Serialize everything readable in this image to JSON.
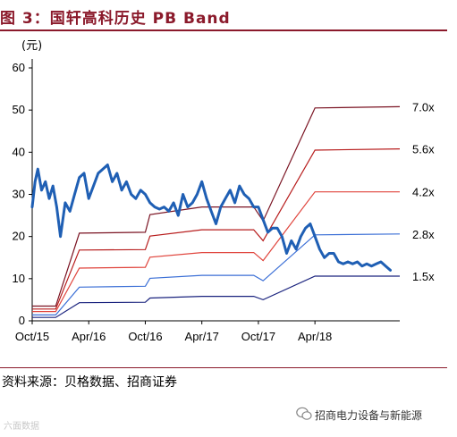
{
  "title": "图 3：国轩高科历史 PB Band",
  "source": "资料来源：贝格数据、招商证券",
  "watermark_left": "六面数据",
  "watermark_right": "招商电力设备与新能源",
  "colors": {
    "title": "#8b1a2b",
    "price": "#1f5fb4",
    "bands": [
      "#1a237e",
      "#3b6fd6",
      "#e0443c",
      "#b71c1c",
      "#7a1322"
    ]
  },
  "chart_data": {
    "type": "line",
    "ylabel": "(元)",
    "ylim": [
      0,
      60
    ],
    "yticks": [
      0,
      10,
      20,
      30,
      40,
      50,
      60
    ],
    "x_tick_labels": [
      "Oct/15",
      "Apr/16",
      "Oct/16",
      "Apr/17",
      "Oct/17",
      "Apr/18"
    ],
    "x_tick_months": [
      0,
      6,
      12,
      18,
      24,
      30
    ],
    "x_range_months": [
      0,
      39
    ],
    "grid": false,
    "legend": "right-side labels",
    "price_series": {
      "name": "",
      "x_months": [
        0,
        0.3,
        0.6,
        1,
        1.4,
        1.8,
        2.2,
        2.6,
        3,
        3.5,
        4,
        4.5,
        5,
        5.5,
        6,
        6.5,
        7,
        7.5,
        8,
        8.5,
        9,
        9.5,
        10,
        10.5,
        11,
        11.5,
        12,
        12.5,
        13,
        13.5,
        14,
        14.5,
        15,
        15.5,
        16,
        16.5,
        17,
        17.5,
        18,
        18.5,
        19,
        19.5,
        20,
        20.5,
        21,
        21.5,
        22,
        22.5,
        23,
        23.5,
        24,
        24.5,
        25,
        25.5,
        26,
        26.5,
        27,
        27.5,
        28,
        28.5,
        29,
        29.5,
        30,
        30.5,
        31,
        31.5,
        32,
        32.5,
        33,
        33.5,
        34,
        34.5,
        35,
        35.5,
        36,
        36.5,
        37,
        37.5,
        38
      ],
      "values": [
        27,
        33,
        36,
        31,
        33,
        29,
        32,
        27,
        20,
        28,
        26,
        30,
        34,
        35,
        29,
        32,
        35,
        36,
        37,
        33,
        35,
        31,
        33,
        30,
        29,
        31,
        30,
        28,
        27,
        26.5,
        27,
        26,
        28,
        25,
        30,
        27,
        28,
        30,
        33,
        29,
        26,
        23,
        27,
        29,
        31,
        28,
        32,
        30,
        29,
        27,
        27,
        24,
        21,
        22,
        22,
        20,
        16,
        19,
        17,
        20,
        22,
        23,
        20,
        17,
        15,
        16,
        16,
        14,
        13.5,
        14,
        13.5,
        14,
        13,
        13.5,
        13,
        13.5,
        14,
        13,
        12
      ]
    },
    "bands": [
      {
        "label": "1.5x",
        "x_months": [
          0,
          2.5,
          5,
          12,
          12.5,
          18,
          23.5,
          24.5,
          30,
          39
        ],
        "values": [
          0.8,
          0.8,
          4.3,
          4.4,
          5.4,
          5.8,
          5.8,
          5.0,
          10.6,
          10.6
        ]
      },
      {
        "label": "2.8x",
        "x_months": [
          0,
          2.5,
          5,
          12,
          12.5,
          18,
          23.5,
          24.5,
          30,
          39
        ],
        "values": [
          1.4,
          1.4,
          8.0,
          8.2,
          10.1,
          10.8,
          10.8,
          9.5,
          20.4,
          20.6
        ]
      },
      {
        "label": "4.2x",
        "x_months": [
          0,
          2.5,
          5,
          12,
          12.5,
          18,
          23.5,
          24.5,
          30,
          39
        ],
        "values": [
          2.2,
          2.2,
          12.5,
          12.7,
          15.1,
          16.2,
          16.2,
          14.3,
          30.6,
          30.6
        ]
      },
      {
        "label": "5.6x",
        "x_months": [
          0,
          2.5,
          5,
          12,
          12.5,
          18,
          23.5,
          24.5,
          30,
          39
        ],
        "values": [
          2.8,
          2.8,
          16.8,
          16.9,
          20.1,
          21.6,
          21.6,
          19.0,
          40.5,
          40.8
        ]
      },
      {
        "label": "7.0x",
        "x_months": [
          0,
          2.5,
          5,
          12,
          12.5,
          18,
          23.5,
          24.5,
          30,
          39
        ],
        "values": [
          3.5,
          3.5,
          20.8,
          21.0,
          25.2,
          27.0,
          27.0,
          23.7,
          50.5,
          50.8
        ]
      }
    ]
  }
}
